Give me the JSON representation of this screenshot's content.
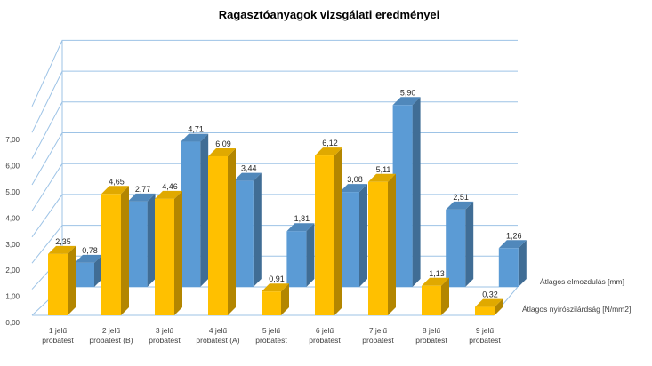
{
  "chart_data": {
    "type": "bar",
    "title": "Ragasztóanyagok vizsgálati eredményei",
    "categories": [
      [
        "1 jelű",
        "próbatest"
      ],
      [
        "2 jelű",
        "próbatest (B)"
      ],
      [
        "3 jelű",
        "próbatest"
      ],
      [
        "4 jelű",
        "próbatest (A)"
      ],
      [
        "5 jelű",
        "próbatest"
      ],
      [
        "6 jelű",
        "próbatest"
      ],
      [
        "7 jelű",
        "próbatest"
      ],
      [
        "8 jelű",
        "próbatest"
      ],
      [
        "9 jelű",
        "próbatest"
      ]
    ],
    "series": [
      {
        "name": "Átlagos nyírószilárdság  [N/mm2]",
        "values": [
          2.35,
          4.65,
          4.46,
          6.09,
          0.91,
          6.12,
          5.11,
          1.13,
          0.32
        ],
        "labels": [
          "2,35",
          "4,65",
          "4,46",
          "6,09",
          "0,91",
          "6,12",
          "5,11",
          "1,13",
          "0,32"
        ],
        "color": "#FFC000"
      },
      {
        "name": "Átlagos elmozdulás [mm]",
        "values": [
          0.78,
          2.77,
          4.71,
          3.44,
          1.81,
          3.08,
          5.9,
          2.51,
          1.26
        ],
        "labels": [
          "0,78",
          "2,77",
          "4,71",
          "3,44",
          "1,81",
          "3,08",
          "5,90",
          "2,51",
          "1,26"
        ],
        "color": "#5B9BD5"
      }
    ],
    "y_ticks": [
      "0,00",
      "1,00",
      "2,00",
      "3,00",
      "4,00",
      "5,00",
      "6,00",
      "7,00"
    ],
    "ylim": [
      0,
      7
    ],
    "grid": true,
    "legend_position": "right"
  }
}
